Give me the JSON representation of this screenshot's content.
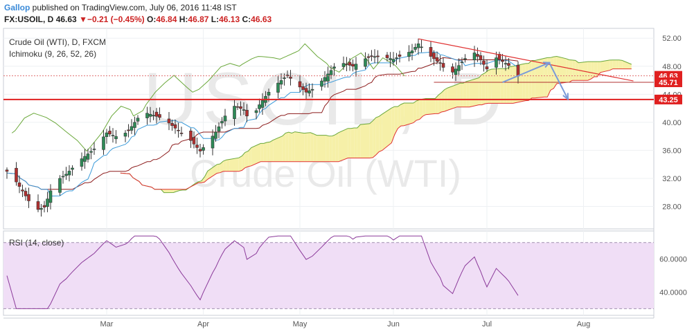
{
  "header": {
    "author": "Gallop",
    "published_text": " published on TradingView.com, July 06, 2016 11:48 IST",
    "symbol": "FX:USOIL, D",
    "last": "46.63",
    "arrow": "▼",
    "change": "−0.21 (−0.45%)",
    "o_label": "O:",
    "o_value": "46.84",
    "h_label": "H:",
    "h_value": "46.87",
    "l_label": "L:",
    "l_value": "46.13",
    "c_label": "C:",
    "c_value": "46.63"
  },
  "legend": {
    "instrument": "Crude Oil (WTI), D, FXCM",
    "indicator": "Ichimoku (9, 26, 52, 26)",
    "rsi": "RSI (14, close)"
  },
  "watermark": {
    "symbol": "USOIL, D",
    "name": "Crude Oil (WTI)"
  },
  "colors": {
    "up": "#2e8b57",
    "down": "#b03030",
    "tenkan": "#3a9ad9",
    "kijun": "#8b1a1a",
    "span_a": "#6aa83a",
    "span_b": "#e03030",
    "chikou": "#6aa83a",
    "cloud": "#f6f0a8",
    "rsi_line": "#8b3a9a",
    "rsi_band": "#f0def6",
    "hline": "#e02020",
    "arrow": "#7a9ad8"
  },
  "chart_data": [
    {
      "type": "candlestick",
      "y_ticks": [
        "52.00",
        "48.00",
        "44.00",
        "40.00",
        "36.00",
        "32.00",
        "28.00"
      ],
      "ylim": [
        24.8,
        53.4
      ],
      "x_ticks": [
        "Mar",
        "Apr",
        "May",
        "Jun",
        "Jul",
        "Aug"
      ],
      "price_labels": [
        {
          "value": 46.63,
          "text": "46.63",
          "color": "#e02020"
        },
        {
          "value": 45.71,
          "text": "45.71",
          "color": "#e02020"
        },
        {
          "value": 43.25,
          "text": "43.25",
          "color": "#e02020"
        }
      ],
      "horizontal_lines": [
        43.25,
        45.71,
        46.63
      ],
      "trendline": {
        "from": [
          "2016-06-09",
          51.9
        ],
        "to": [
          "2016-08-17",
          45.9
        ]
      },
      "projection": [
        [
          "2016-07-06",
          45.7
        ],
        [
          "2016-07-21",
          48.5
        ],
        [
          "2016-07-27",
          43.3
        ]
      ]
    },
    {
      "type": "line",
      "name": "RSI (14, close)",
      "y_ticks": [
        "60.0000",
        "40.0000"
      ],
      "levels": [
        70,
        30
      ],
      "ylim": [
        26,
        77
      ]
    }
  ]
}
